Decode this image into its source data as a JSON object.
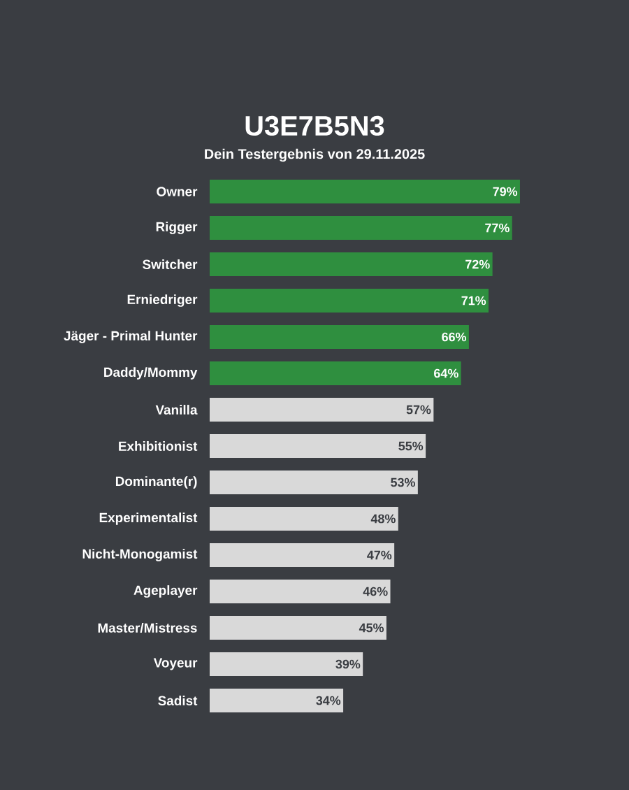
{
  "chart_data": {
    "type": "bar",
    "orientation": "horizontal",
    "title": "U3E7B5N3",
    "subtitle": "Dein Testergebnis von 29.11.2025",
    "categories": [
      "Owner",
      "Rigger",
      "Switcher",
      "Erniedriger",
      "Jäger - Primal Hunter",
      "Daddy/Mommy",
      "Vanilla",
      "Exhibitionist",
      "Dominante(r)",
      "Experimentalist",
      "Nicht-Monogamist",
      "Ageplayer",
      "Master/Mistress",
      "Voyeur",
      "Sadist"
    ],
    "values": [
      79,
      77,
      72,
      71,
      66,
      64,
      57,
      55,
      53,
      48,
      47,
      46,
      45,
      39,
      34
    ],
    "value_labels": [
      "79%",
      "77%",
      "72%",
      "71%",
      "66%",
      "64%",
      "57%",
      "55%",
      "53%",
      "48%",
      "47%",
      "46%",
      "45%",
      "39%",
      "34%"
    ],
    "colors": [
      "#2f8f3f",
      "#2f8f3f",
      "#2f8f3f",
      "#2f8f3f",
      "#2f8f3f",
      "#2f8f3f",
      "#d9d9d9",
      "#d9d9d9",
      "#d9d9d9",
      "#d9d9d9",
      "#d9d9d9",
      "#d9d9d9",
      "#d9d9d9",
      "#d9d9d9",
      "#d9d9d9"
    ],
    "tick_labels": "y"
  }
}
